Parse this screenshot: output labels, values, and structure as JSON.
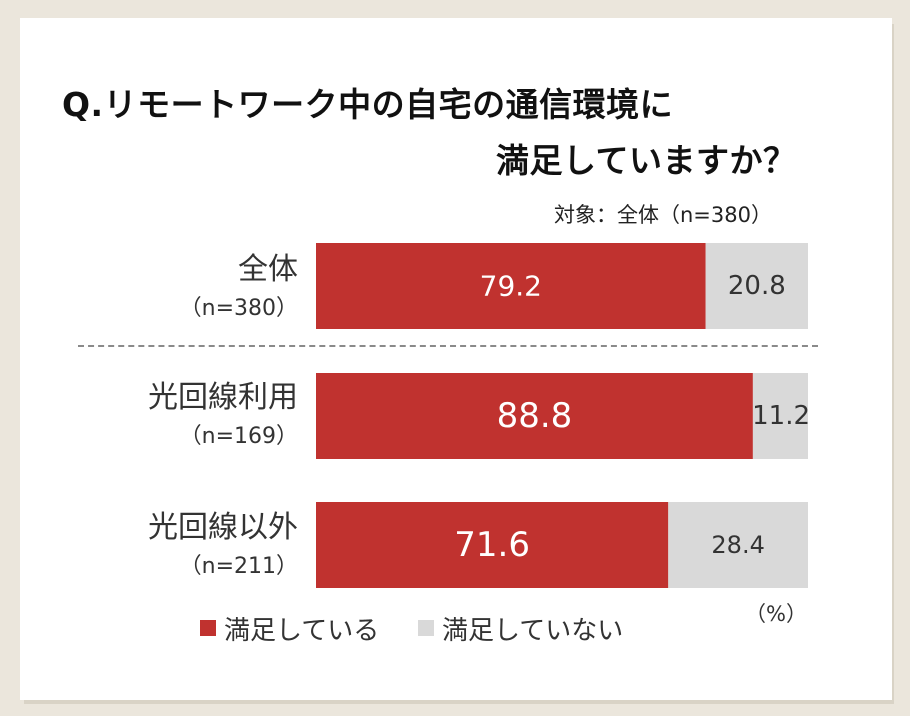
{
  "chart_data": {
    "type": "bar",
    "orientation": "horizontal",
    "stacked": true,
    "title_line1": "Q.リモートワーク中の自宅の通信環境に",
    "title_line2": "満足していますか？",
    "subtitle": "対象：全体（n=380）",
    "unit": "（%）",
    "categories": [
      {
        "name": "全体",
        "n": "（n=380）"
      },
      {
        "name": "光回線利用",
        "n": "（n=169）"
      },
      {
        "name": "光回線以外",
        "n": "（n=211）"
      }
    ],
    "series": [
      {
        "name": "満足している",
        "color": "#c0322f",
        "values": [
          79.2,
          88.8,
          71.6
        ]
      },
      {
        "name": "満足していない",
        "color": "#d9d9d9",
        "values": [
          20.8,
          11.2,
          28.4
        ]
      }
    ],
    "xlim": [
      0,
      100
    ]
  }
}
